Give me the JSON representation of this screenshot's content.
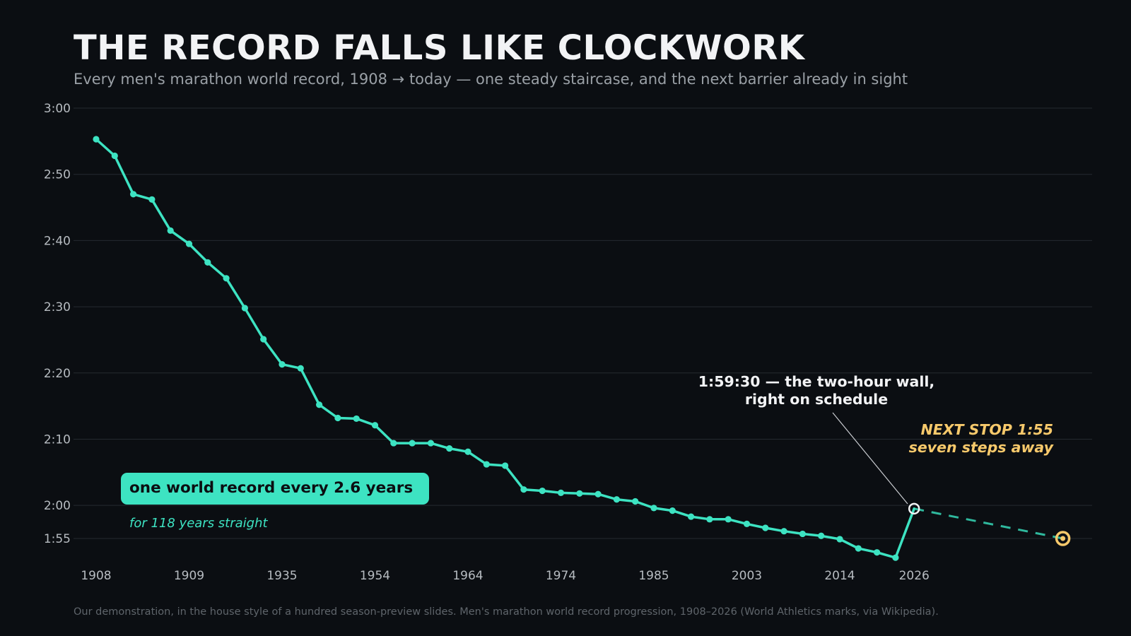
{
  "title": "THE RECORD FALLS LIKE CLOCKWORK",
  "subtitle": "Every men's marathon world record, 1908 → today — one steady staircase, and the next barrier already in sight",
  "footer": "Our demonstration, in the house style of a hundred season-preview slides. Men's marathon world record progression, 1908–2026 (World Athletics marks, via Wikipedia).",
  "colors": {
    "background": "#0b0e12",
    "line": "#3de3c2",
    "projection": "#2fb89d",
    "target": "#f7c96b",
    "grid": "#252a30"
  },
  "chart_data": {
    "type": "line",
    "title": "",
    "xlabel": "",
    "ylabel": "",
    "y_unit": "minutes above 1:50",
    "ylim": [
      5,
      70
    ],
    "y_ticks": [
      {
        "value": 70,
        "label": "3:00"
      },
      {
        "value": 60,
        "label": "2:50"
      },
      {
        "value": 50,
        "label": "2:40"
      },
      {
        "value": 40,
        "label": "2:30"
      },
      {
        "value": 30,
        "label": "2:20"
      },
      {
        "value": 20,
        "label": "2:10"
      },
      {
        "value": 10,
        "label": "2:00"
      },
      {
        "value": 5,
        "label": "1:55"
      }
    ],
    "x_ticks": [
      {
        "index": 0,
        "label": "1908"
      },
      {
        "index": 5,
        "label": "1909"
      },
      {
        "index": 10,
        "label": "1935"
      },
      {
        "index": 15,
        "label": "1954"
      },
      {
        "index": 20,
        "label": "1964"
      },
      {
        "index": 25,
        "label": "1974"
      },
      {
        "index": 30,
        "label": "1985"
      },
      {
        "index": 35,
        "label": "2003"
      },
      {
        "index": 40,
        "label": "2014"
      },
      {
        "index": 44,
        "label": "2026"
      }
    ],
    "grid": true,
    "series": [
      {
        "values": [
          65.3,
          62.8,
          57.0,
          56.2,
          51.5,
          49.5,
          46.7,
          44.3,
          39.8,
          35.1,
          31.3,
          30.7,
          25.2,
          23.2,
          23.1,
          22.1,
          19.4,
          19.4,
          19.4,
          18.6,
          18.1,
          16.2,
          16.0,
          12.4,
          12.2,
          11.9,
          11.8,
          11.7,
          10.9,
          10.6,
          9.6,
          9.2,
          8.3,
          7.9,
          7.9,
          7.2,
          6.6,
          6.1,
          5.7,
          5.4,
          4.9,
          3.5,
          2.9,
          2.1,
          9.5
        ]
      }
    ],
    "projection": {
      "from_index": 44,
      "to_index": 52,
      "from_value": 9.5,
      "to_value": 5
    }
  },
  "annotations": {
    "wall_line1": "1:59:30 — the two-hour wall,",
    "wall_line2": "right on schedule",
    "next_line1": "NEXT STOP 1:55",
    "next_line2": "seven steps away",
    "badge": "one world record every 2.6 years",
    "badge_sub": "for 118 years straight"
  }
}
